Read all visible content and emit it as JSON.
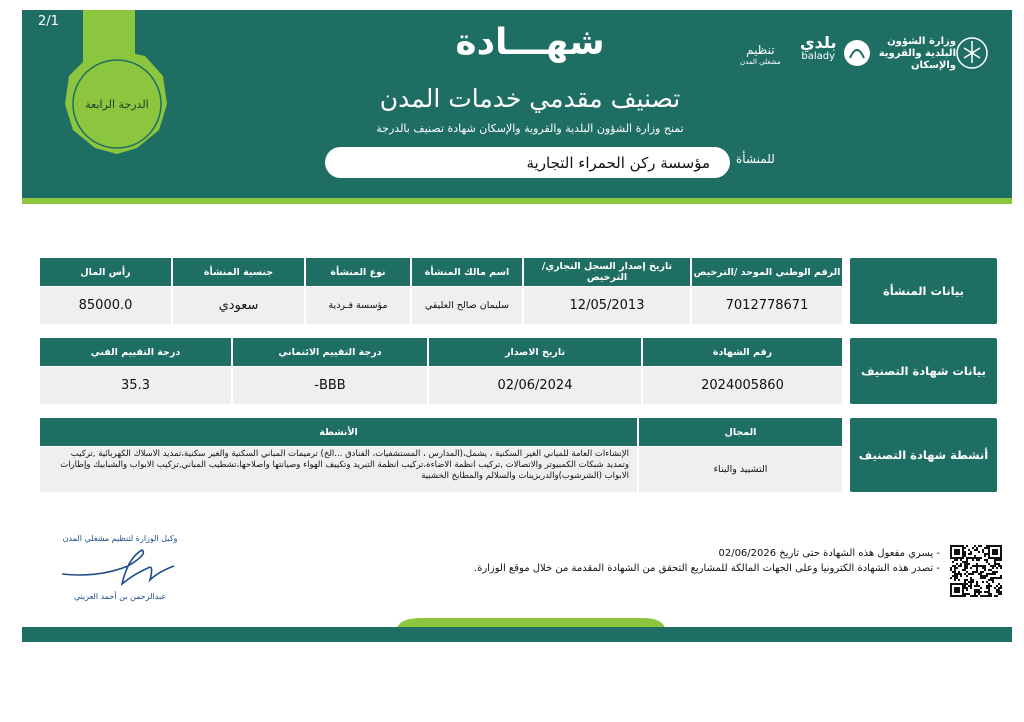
{
  "header": {
    "page": "2/1",
    "grade_badge": "الدرجة الرابعة",
    "title": "شهـــادة",
    "subtitle": "تصنيف مقدمي خدمات المدن",
    "grant_text": "تمنح وزارة الشؤون البلدية والقروية والإسكان شهادة تصنيف بالدرجة",
    "entity_label": "للمنشأة",
    "entity_name": "مؤسسة ركن الحمراء التجارية"
  },
  "logos": {
    "ministry": "وزارة الشؤون البلدية والقروية والإسكان",
    "balady_ar": "بلدي",
    "balady_en": "balady",
    "tanzeem": "تنظيم",
    "tanzeem_sub": "مشغلي المدن"
  },
  "sections": [
    {
      "label": "بيانات المنشأة",
      "columns": [
        "الرقم الوطني الموحد /الترخيص",
        "تاريخ إصدار السجل التجاري/ الترخيص",
        "اسم مالك المنشأة",
        "نوع المنشأة",
        "جنسية المنشأة",
        "رأس المال"
      ],
      "values": [
        "7012778671",
        "12/05/2013",
        "سليمان صالح العليقي",
        "مؤسسة فـردية",
        "سعودي",
        "85000.0"
      ]
    },
    {
      "label": "بيانات شهادة التصنيف",
      "columns": [
        "رقم الشهادة",
        "تاريخ الاصدار",
        "درجة التقييم الائتماني",
        "درجة التقييم الفني"
      ],
      "values": [
        "2024005860",
        "02/06/2024",
        "BBB-",
        "35.3"
      ]
    },
    {
      "label": "أنشطة شهادة التصنيف",
      "columns": [
        "المجال",
        "الأنشطة"
      ],
      "values": [
        "التشييد والبناء",
        "الإنشاءات العامة للمباني الغير السكنية ، يشمل،(المدارس ، المستشفيات، الفنادق ...الخ) ترميمات المباني السكنية والغير سكنية،تمديد الاسلاك الكهربائية ,تركيب وتمديد شبكات الكمبيوتر والاتصالات ,تركيب انظمة الاضاءة،تركيب انظمة التبريد وتكييف الهواء وصيانتها واصلاحها،تشطيب المباني,تركيب الابواب والشبابيك وإطارات الابواب (الشرشوب)والدربزينات والسلالم والمطابخ الخشبية"
      ]
    }
  ],
  "footer": {
    "validity_label": "- يسري مفعول هذه الشهادة حتى تاريخ",
    "validity_date": "02/06/2026",
    "verify_text": "- تصدر هذه الشهادة الكترونيا وعلى الجهات المالكة للمشاريع التحقق من الشهادة المقدمة من خلال موقع الوزارة.",
    "signer_title": "وكيل الوزارة لتنظيم مشغلي المدن",
    "signer_name": "عبدالرحمن بن أحمد العريني"
  }
}
